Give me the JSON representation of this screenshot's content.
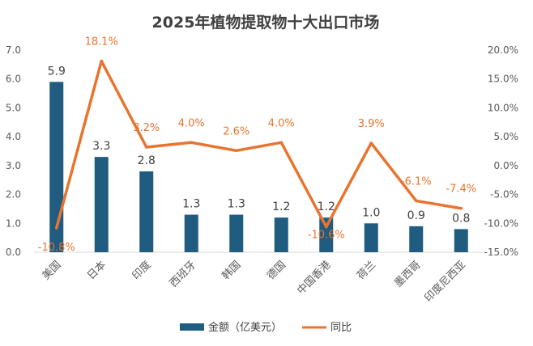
{
  "chart_data": {
    "type": "bar",
    "title": "2025年植物提取物十大出口市场",
    "categories": [
      "美国",
      "日本",
      "印度",
      "西班牙",
      "韩国",
      "德国",
      "中国香港",
      "荷兰",
      "墨西哥",
      "印度尼西亚"
    ],
    "series": [
      {
        "name": "金额（亿美元）",
        "type": "bar",
        "axis": "left",
        "color": "#1f5c7f",
        "values": [
          5.9,
          3.3,
          2.8,
          1.3,
          1.3,
          1.2,
          1.2,
          1.0,
          0.9,
          0.8
        ],
        "labels": [
          "5.9",
          "3.3",
          "2.8",
          "1.3",
          "1.3",
          "1.2",
          "1.2",
          "1.0",
          "0.9",
          "0.8"
        ]
      },
      {
        "name": "同比",
        "type": "line",
        "axis": "right",
        "color": "#e8742f",
        "values": [
          -10.8,
          18.1,
          3.2,
          4.0,
          2.6,
          4.0,
          -10.6,
          3.9,
          -6.1,
          -7.4
        ],
        "labels": [
          "-10.8%",
          "18.1%",
          "3.2%",
          "4.0%",
          "2.6%",
          "4.0%",
          "-10.6%",
          "3.9%",
          "-6.1%",
          "-7.4%"
        ]
      }
    ],
    "y_left": {
      "ylim": [
        0,
        7
      ],
      "ticks": [
        "0.0",
        "1.0",
        "2.0",
        "3.0",
        "4.0",
        "5.0",
        "6.0",
        "7.0"
      ]
    },
    "y_right": {
      "ylim": [
        -15,
        20
      ],
      "ticks": [
        "-15.0%",
        "-10.0%",
        "-5.0%",
        "0.0%",
        "5.0%",
        "10.0%",
        "15.0%",
        "20.0%"
      ]
    },
    "grid": false,
    "legend": "bottom"
  }
}
